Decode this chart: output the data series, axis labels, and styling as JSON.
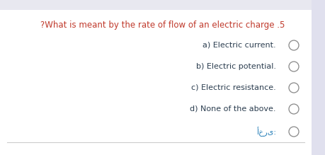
{
  "bg_top_color": "#e8e8f0",
  "bg_main_color": "#ffffff",
  "question": "?What is meant by the rate of flow of an electric charge .5",
  "question_color": "#c0392b",
  "options": [
    "a) Electric current.",
    "b) Electric potential.",
    "c) Electric resistance.",
    "d) None of the above."
  ],
  "arabic_option": "أخرى:",
  "arabic_color": "#2980b9",
  "option_color": "#2c3e50",
  "circle_edge_color": "#888888",
  "font_size_question": 8.5,
  "font_size_options": 8.0,
  "separator_color": "#cccccc",
  "side_bar_color": "#e0e0ee"
}
